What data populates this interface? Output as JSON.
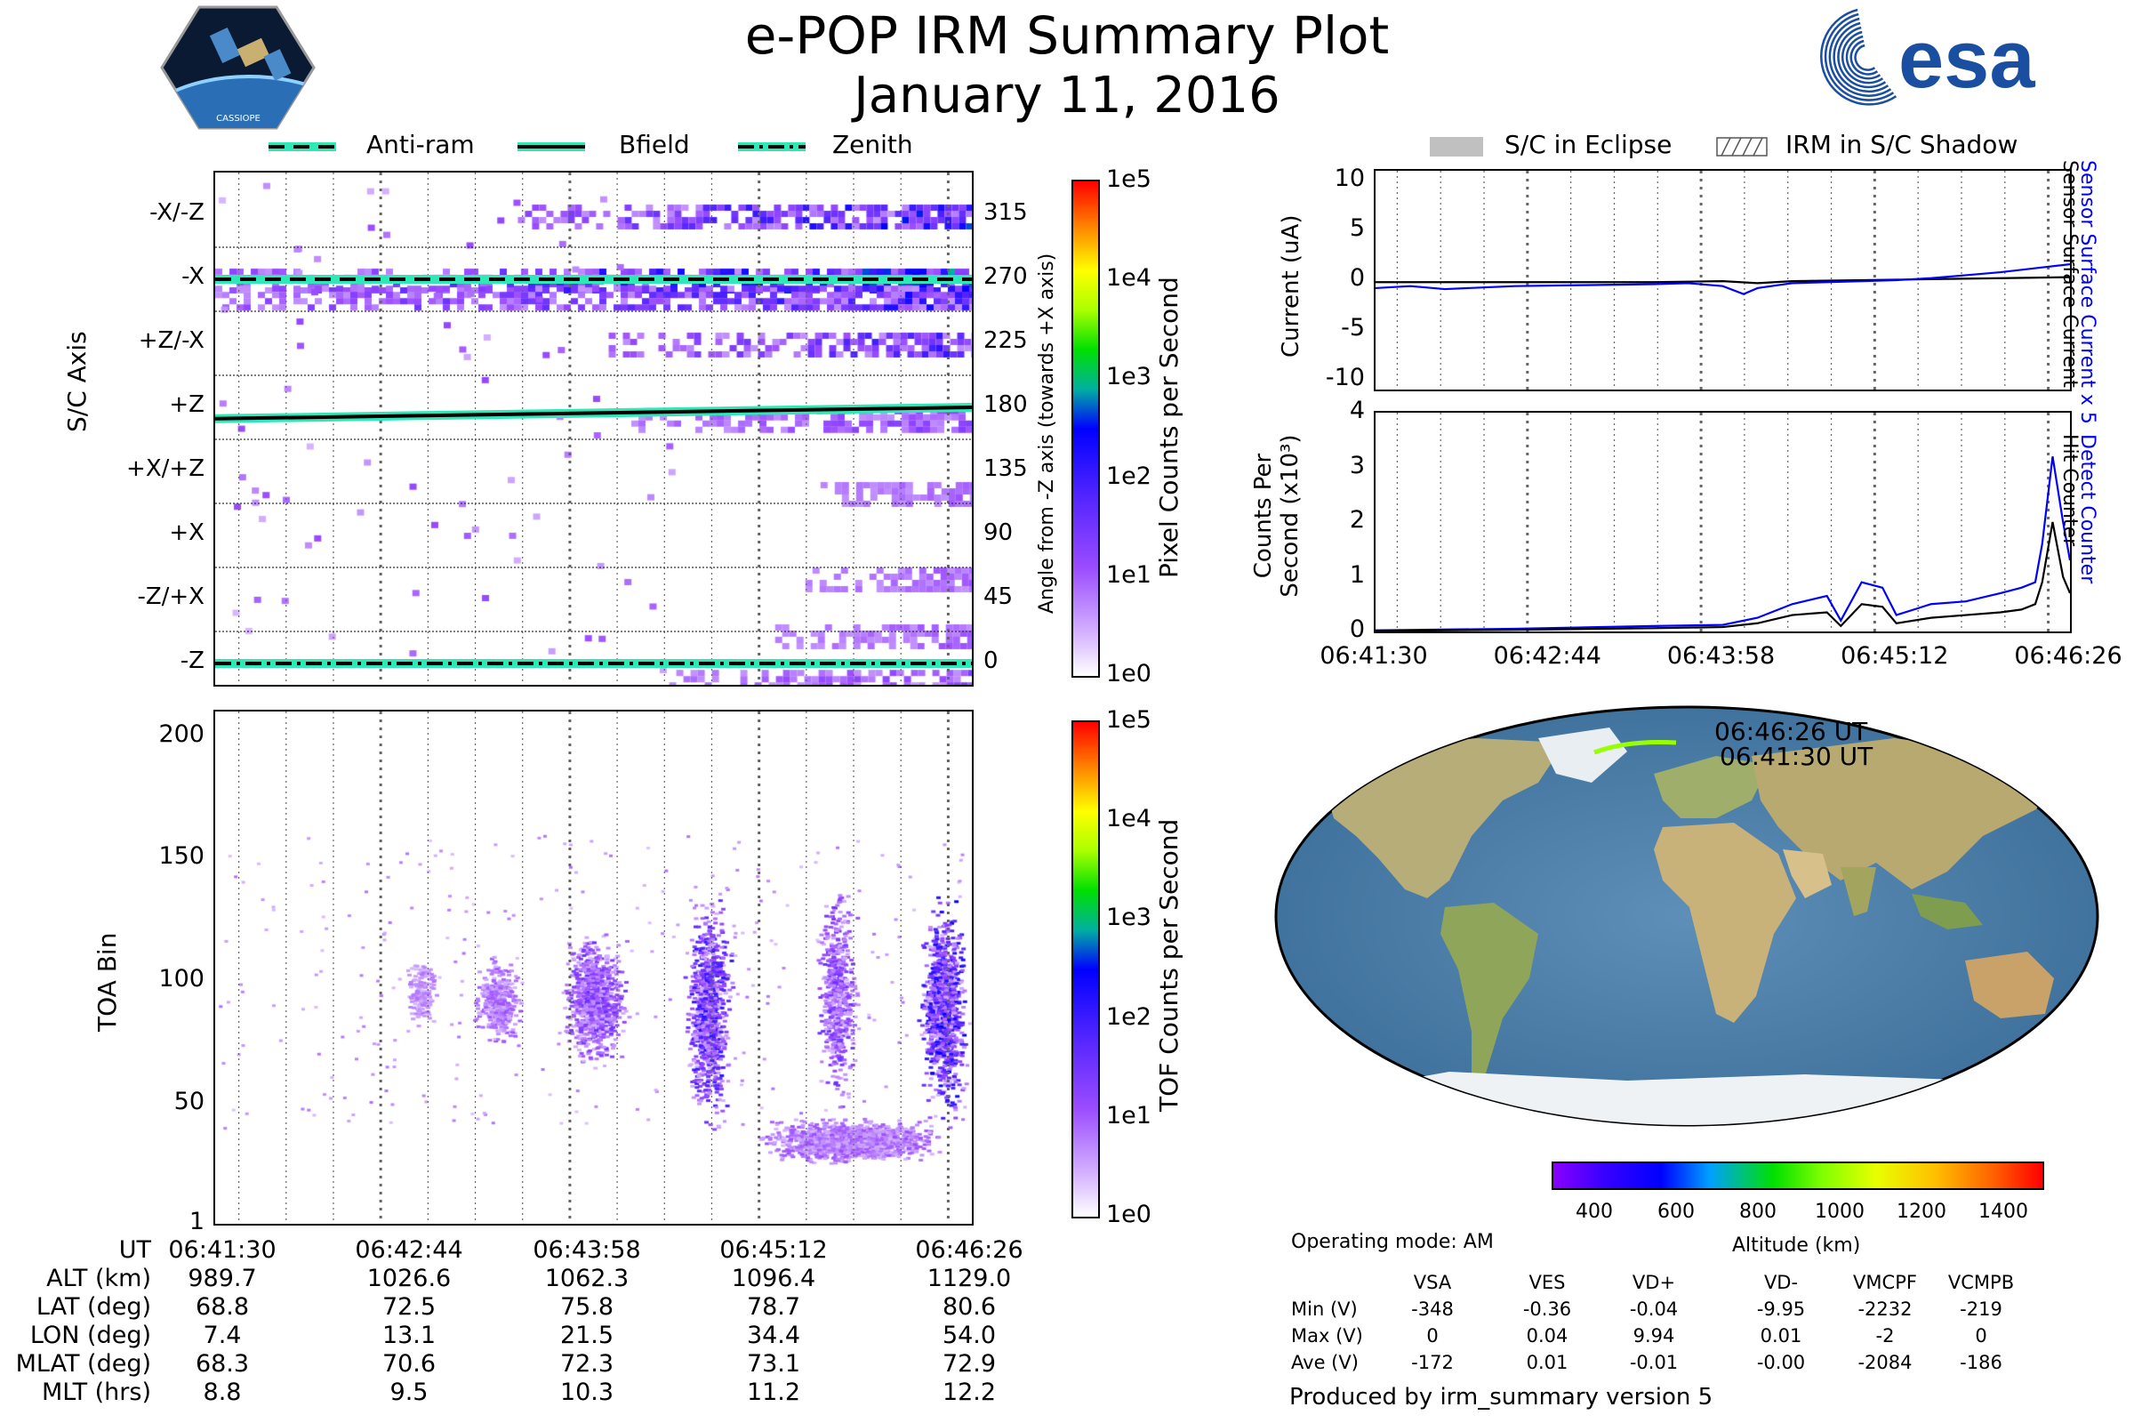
{
  "title": "e-POP IRM Summary Plot",
  "date": "January 11, 2016",
  "left_legend": [
    {
      "label": "Anti-ram",
      "style": "dashed"
    },
    {
      "label": "Bfield",
      "style": "solid"
    },
    {
      "label": "Zenith",
      "style": "dashdot"
    }
  ],
  "right_legend": [
    {
      "label": "S/C in Eclipse",
      "style": "gray-fill"
    },
    {
      "label": "IRM in S/C Shadow",
      "style": "hatched"
    }
  ],
  "esa_logo_text": "esa",
  "cassiope_logo_text": "CASSIOPE",
  "colors": {
    "line": "#000000",
    "blue": "#0000ff",
    "highlight": "#2ee8b8",
    "track": "#98ff00",
    "eclipse": "#c0c0c0"
  },
  "chart_data": [
    {
      "id": "pixel",
      "type": "heatmap",
      "ylabel": "S/C Axis",
      "ylabel_right": "Angle from -Z axis (towards +X axis)",
      "axis_labels": [
        "-X/-Z",
        "-X",
        "+Z/-X",
        "+Z",
        "+X/+Z",
        "+X",
        "-Z/+X",
        "-Z"
      ],
      "angle_ticks": [
        "315",
        "270",
        "225",
        "180",
        "135",
        "90",
        "45",
        "0"
      ],
      "ylim": [
        -15,
        345
      ],
      "colorbar": {
        "label": "Pixel Counts per Second",
        "ticks": [
          "1e5",
          "1e4",
          "1e3",
          "1e2",
          "1e1",
          "1e0"
        ],
        "scale": "log"
      },
      "lines": [
        {
          "name": "Anti-ram",
          "y_start": 270,
          "y_end": 270
        },
        {
          "name": "Bfield",
          "y_start": 172,
          "y_end": 180
        },
        {
          "name": "Zenith",
          "y_start": 0,
          "y_end": 0
        }
      ],
      "intensity_bands": [
        {
          "y": 315,
          "start": 0.4,
          "level": 1.2
        },
        {
          "y": 270,
          "start": 0.0,
          "level": 1.3
        },
        {
          "y": 258,
          "start": 0.0,
          "level": 1.0
        },
        {
          "y": 225,
          "start": 0.52,
          "level": 0.9
        },
        {
          "y": 172,
          "start": 0.55,
          "level": 0.5
        },
        {
          "y": 120,
          "start": 0.8,
          "level": 0.3
        },
        {
          "y": 60,
          "start": 0.78,
          "level": 0.3
        },
        {
          "y": 20,
          "start": 0.74,
          "level": 0.3
        },
        {
          "y": -12,
          "start": 0.6,
          "level": 0.5
        }
      ]
    },
    {
      "id": "tof",
      "type": "heatmap",
      "ylabel": "TOA Bin",
      "y_ticks": [
        "1",
        "50",
        "100",
        "150",
        "200"
      ],
      "ylim": [
        1,
        210
      ],
      "colorbar": {
        "label": "TOF Counts per Second",
        "ticks": [
          "1e5",
          "1e4",
          "1e3",
          "1e2",
          "1e1",
          "1e0"
        ],
        "scale": "log"
      },
      "clusters": [
        {
          "x": 0.5,
          "y": 93,
          "w": 0.1,
          "h": 30,
          "level": 1.0
        },
        {
          "x": 0.65,
          "y": 88,
          "w": 0.07,
          "h": 55,
          "level": 1.4
        },
        {
          "x": 0.82,
          "y": 95,
          "w": 0.06,
          "h": 50,
          "level": 1.0
        },
        {
          "x": 0.96,
          "y": 88,
          "w": 0.07,
          "h": 50,
          "level": 1.6
        },
        {
          "x": 0.37,
          "y": 92,
          "w": 0.07,
          "h": 20,
          "level": 0.6
        },
        {
          "x": 0.27,
          "y": 95,
          "w": 0.05,
          "h": 15,
          "level": 0.4
        },
        {
          "x": 0.84,
          "y": 35,
          "w": 0.27,
          "h": 10,
          "level": 0.6
        }
      ]
    },
    {
      "id": "current",
      "type": "line",
      "ylabel": "Current (uA)",
      "ylim": [
        -11,
        11
      ],
      "y_ticks": [
        "10",
        "5",
        "0",
        "-5",
        "-10"
      ],
      "right_labels": [
        {
          "text": "Sensor Surface Current x 5",
          "color": "#0000ff"
        },
        {
          "text": "Sensor Surface Current",
          "color": "#000000"
        }
      ],
      "series": [
        {
          "color": "#000000",
          "x": [
            0,
            0.2,
            0.4,
            0.5,
            0.55,
            0.6,
            0.8,
            1.0
          ],
          "y": [
            -0.2,
            -0.2,
            -0.2,
            -0.1,
            -0.3,
            -0.1,
            0.1,
            0.3
          ]
        },
        {
          "color": "#0000ff",
          "x": [
            0,
            0.05,
            0.1,
            0.2,
            0.3,
            0.4,
            0.45,
            0.5,
            0.53,
            0.55,
            0.58,
            0.6,
            0.65,
            0.7,
            0.75,
            0.8,
            0.85,
            0.9,
            0.95,
            1.0
          ],
          "y": [
            -0.8,
            -0.6,
            -0.9,
            -0.6,
            -0.5,
            -0.4,
            -0.3,
            -0.6,
            -1.4,
            -0.8,
            -0.5,
            -0.3,
            -0.2,
            -0.1,
            0.0,
            0.2,
            0.5,
            0.8,
            1.2,
            1.6
          ]
        }
      ]
    },
    {
      "id": "counts",
      "type": "line",
      "ylabel": "Counts Per Second (x10³)",
      "ylim": [
        0,
        4
      ],
      "y_ticks": [
        "4",
        "3",
        "2",
        "1",
        "0"
      ],
      "x_tick_labels": [
        "06:41:30",
        "06:42:44",
        "06:43:58",
        "06:45:12",
        "06:46:26"
      ],
      "right_labels": [
        {
          "text": "Detect Counter",
          "color": "#0000ff"
        },
        {
          "text": "Hit Counter",
          "color": "#000000"
        }
      ],
      "series": [
        {
          "color": "#0000ff",
          "x": [
            0,
            0.2,
            0.4,
            0.5,
            0.55,
            0.6,
            0.65,
            0.67,
            0.7,
            0.73,
            0.75,
            0.8,
            0.85,
            0.9,
            0.93,
            0.95,
            0.96,
            0.975,
            0.99,
            1.0
          ],
          "y": [
            0.02,
            0.05,
            0.1,
            0.12,
            0.25,
            0.5,
            0.65,
            0.2,
            0.9,
            0.8,
            0.3,
            0.5,
            0.55,
            0.7,
            0.8,
            0.9,
            1.6,
            3.2,
            2.0,
            1.3
          ]
        },
        {
          "color": "#000000",
          "x": [
            0,
            0.2,
            0.4,
            0.5,
            0.55,
            0.6,
            0.65,
            0.67,
            0.7,
            0.73,
            0.75,
            0.8,
            0.85,
            0.9,
            0.93,
            0.95,
            0.96,
            0.975,
            0.99,
            1.0
          ],
          "y": [
            0.01,
            0.03,
            0.06,
            0.08,
            0.15,
            0.3,
            0.35,
            0.1,
            0.5,
            0.45,
            0.15,
            0.25,
            0.3,
            0.35,
            0.4,
            0.5,
            0.9,
            2.0,
            1.0,
            0.7
          ]
        }
      ]
    }
  ],
  "map": {
    "start_label": "06:41:30 UT",
    "end_label": "06:46:26 UT",
    "altitude_colorbar": {
      "label": "Altitude (km)",
      "ticks": [
        "400",
        "600",
        "800",
        "1000",
        "1200",
        "1400"
      ]
    }
  },
  "time_axis": {
    "labels": [
      "06:41:30",
      "06:42:44",
      "06:43:58",
      "06:45:12",
      "06:46:26"
    ]
  },
  "ephemeris": {
    "header_label": "UT",
    "rows": [
      {
        "label": "ALT (km)",
        "values": [
          "989.7",
          "1026.6",
          "1062.3",
          "1096.4",
          "1129.0"
        ]
      },
      {
        "label": "LAT (deg)",
        "values": [
          "68.8",
          "72.5",
          "75.8",
          "78.7",
          "80.6"
        ]
      },
      {
        "label": "LON (deg)",
        "values": [
          "7.4",
          "13.1",
          "21.5",
          "34.4",
          "54.0"
        ]
      },
      {
        "label": "MLAT (deg)",
        "values": [
          "68.3",
          "70.6",
          "72.3",
          "73.1",
          "72.9"
        ]
      },
      {
        "label": "MLT (hrs)",
        "values": [
          "8.8",
          "9.5",
          "10.3",
          "11.2",
          "12.2"
        ]
      }
    ]
  },
  "operating_mode": "Operating mode: AM",
  "voltage_table": {
    "columns": [
      "VSA",
      "VES",
      "VD+",
      "VD-",
      "VMCPF",
      "VCMPB"
    ],
    "rows": [
      {
        "label": "Min (V)",
        "values": [
          "-348",
          "-0.36",
          "-0.04",
          "-9.95",
          "-2232",
          "-219"
        ]
      },
      {
        "label": "Max (V)",
        "values": [
          "0",
          "0.04",
          "9.94",
          "0.01",
          "-2",
          "0"
        ]
      },
      {
        "label": "Ave (V)",
        "values": [
          "-172",
          "0.01",
          "-0.01",
          "-0.00",
          "-2084",
          "-186"
        ]
      }
    ]
  },
  "footer": "Produced by irm_summary version 5"
}
